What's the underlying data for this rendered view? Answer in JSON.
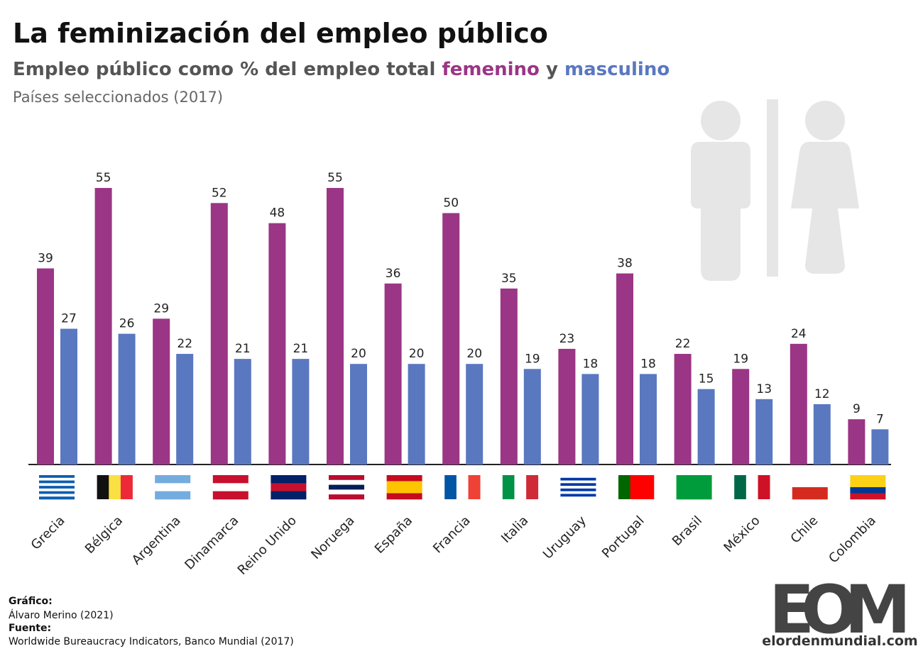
{
  "chart_data": {
    "type": "bar",
    "title": "La feminización del empleo público",
    "subtitle": "Empleo público como % del empleo total",
    "subtitle_joiner": "y",
    "note": "Países seleccionados (2017)",
    "categories": [
      "Grecia",
      "Bélgica",
      "Argentina",
      "Dinamarca",
      "Reino Unido",
      "Noruega",
      "España",
      "Francia",
      "Italia",
      "Uruguay",
      "Portugal",
      "Brasil",
      "México",
      "Chile",
      "Colombia"
    ],
    "series": [
      {
        "name": "femenino",
        "color": "#9b3585",
        "values": [
          39,
          55,
          29,
          52,
          48,
          55,
          36,
          50,
          35,
          23,
          38,
          22,
          19,
          24,
          9
        ]
      },
      {
        "name": "masculino",
        "color": "#5a78c0",
        "values": [
          27,
          26,
          22,
          21,
          21,
          20,
          20,
          20,
          19,
          18,
          18,
          15,
          13,
          12,
          7
        ]
      }
    ],
    "credits": {
      "chart_label": "Gráfico:",
      "author": "Álvaro Merino (2021)",
      "source_label": "Fuente:",
      "source": "Worldwide Bureaucracy Indicators, Banco Mundial (2017)"
    },
    "logo": {
      "letters": "EOM",
      "site": "elordenmundial.com"
    }
  }
}
